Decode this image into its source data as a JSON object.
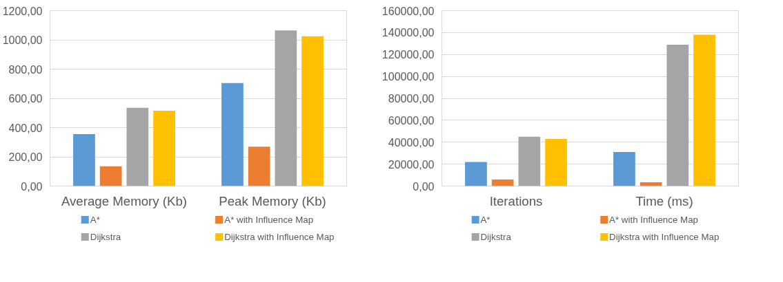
{
  "chart_data": [
    {
      "type": "bar",
      "categories": [
        "Average Memory (Kb)",
        "Peak Memory (Kb)"
      ],
      "series": [
        {
          "name": "A*",
          "color": "#5b9bd5",
          "values": [
            355,
            705
          ]
        },
        {
          "name": "A* with Influence Map",
          "color": "#ed7d31",
          "values": [
            135,
            270
          ]
        },
        {
          "name": "Dijkstra",
          "color": "#a5a5a5",
          "values": [
            535,
            1065
          ]
        },
        {
          "name": "Dijkstra with Influence Map",
          "color": "#ffc000",
          "values": [
            515,
            1025
          ]
        }
      ],
      "ylim": [
        0,
        1200
      ],
      "yticks": [
        {
          "value": 0,
          "label": "0,00"
        },
        {
          "value": 200,
          "label": "200,00"
        },
        {
          "value": 400,
          "label": "400,00"
        },
        {
          "value": 600,
          "label": "600,00"
        },
        {
          "value": 800,
          "label": "800,00"
        },
        {
          "value": 1000,
          "label": "1000,00"
        },
        {
          "value": 1200,
          "label": "1200,00"
        }
      ],
      "grid": "y",
      "legend": "bottom"
    },
    {
      "type": "bar",
      "categories": [
        "Iterations",
        "Time (ms)"
      ],
      "series": [
        {
          "name": "A*",
          "color": "#5b9bd5",
          "values": [
            22000,
            31000
          ]
        },
        {
          "name": "A* with Influence Map",
          "color": "#ed7d31",
          "values": [
            6000,
            3500
          ]
        },
        {
          "name": "Dijkstra",
          "color": "#a5a5a5",
          "values": [
            45000,
            129000
          ]
        },
        {
          "name": "Dijkstra with Influence Map",
          "color": "#ffc000",
          "values": [
            43000,
            138000
          ]
        }
      ],
      "ylim": [
        0,
        160000
      ],
      "yticks": [
        {
          "value": 0,
          "label": "0,00"
        },
        {
          "value": 20000,
          "label": "20000,00"
        },
        {
          "value": 40000,
          "label": "40000,00"
        },
        {
          "value": 60000,
          "label": "60000,00"
        },
        {
          "value": 80000,
          "label": "80000,00"
        },
        {
          "value": 100000,
          "label": "100000,00"
        },
        {
          "value": 120000,
          "label": "120000,00"
        },
        {
          "value": 140000,
          "label": "140000,00"
        },
        {
          "value": 160000,
          "label": "160000,00"
        }
      ],
      "grid": "y",
      "legend": "bottom"
    }
  ]
}
